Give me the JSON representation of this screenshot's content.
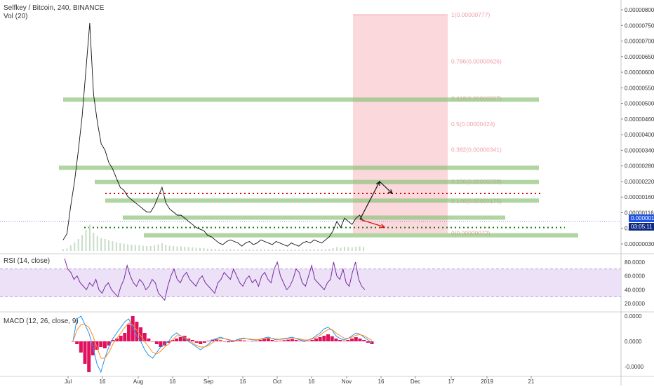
{
  "header": {
    "symbol": "Selfkey / Bitcoin, 240, BINANCE",
    "volume": "Vol (20)",
    "rsi": "RSI (14, close)",
    "macd": "MACD (12, 26, close, 9)"
  },
  "price_badge": "0.00000116",
  "time_badge": "03:05:11",
  "colors": {
    "zone_green": "#8fc27a",
    "fib_red": "#f4a9b0",
    "rsi_line": "#7a2aa0",
    "rsi_band": "#e7d9f5",
    "macd_line": "#2196f3",
    "signal_line": "#ff8c1a",
    "hist_pos": "#e0115f",
    "hist_neg": "#e0115f",
    "price_line": "#111111",
    "dotted_red": "#cc0000",
    "dotted_green": "#1b7a1b",
    "arrow_black": "#111111",
    "arrow_red": "#e01010"
  },
  "chart_data": [
    {
      "type": "line",
      "name": "price",
      "yticks": [
        "0.00000800",
        "0.00000750",
        "0.00000700",
        "0.00000650",
        "0.00000600",
        "0.00000550",
        "0.00000500",
        "0.00000460",
        "0.00000400",
        "0.00000340",
        "0.00000280",
        "0.00000220",
        "0.00000160",
        "0.00000116",
        "0.00000070",
        "0.00000030"
      ],
      "ylim": [
        1e-07,
        8.2e-06
      ],
      "xticks": [
        "Jul",
        "16",
        "Aug",
        "16",
        "Sep",
        "16",
        "Oct",
        "16",
        "Nov",
        "16",
        "Dec",
        "17",
        "2019",
        "21"
      ],
      "price_series": [
        5e-07,
        7e-07,
        1.6e-06,
        2.4e-06,
        3.4e-06,
        4.5e-06,
        6e-06,
        7.5e-06,
        5.2e-06,
        4.3e-06,
        3.6e-06,
        3.4e-06,
        3e-06,
        2.8e-06,
        2.5e-06,
        2.2e-06,
        2.1e-06,
        1.9e-06,
        1.8e-06,
        1.7e-06,
        1.6e-06,
        1.5e-06,
        1.4e-06,
        1.4e-06,
        1.6e-06,
        1.9e-06,
        2.2e-06,
        1.7e-06,
        1.5e-06,
        1.4e-06,
        1.3e-06,
        1.3e-06,
        1.2e-06,
        1.1e-06,
        1e-06,
        9e-07,
        8.5e-07,
        8e-07,
        6.5e-07,
        6e-07,
        5e-07,
        4e-07,
        3.5e-07,
        4.5e-07,
        5e-07,
        4.5e-07,
        4e-07,
        3e-07,
        4e-07,
        4.5e-07,
        3.5e-07,
        4e-07,
        5e-07,
        4.5e-07,
        4e-07,
        3.5e-07,
        4.5e-07,
        4e-07,
        3.5e-07,
        3e-07,
        4e-07,
        3.5e-07,
        3e-07,
        4e-07,
        4.5e-07,
        4e-07,
        5e-07,
        4.5e-07,
        4e-07,
        5e-07,
        6e-07,
        8e-07,
        1.1e-06,
        9e-07,
        1.2e-06,
        1.1e-06,
        1e-06,
        1.2e-06,
        1.3e-06,
        1.1e-06
      ],
      "fib_levels": [
        {
          "label": "1(0.00000777)",
          "value": 7.77e-06
        },
        {
          "label": "0.786(0.00000626)",
          "value": 6.26e-06
        },
        {
          "label": "0.618(0.00000507)",
          "value": 5.07e-06
        },
        {
          "label": "0.5(0.00000424)",
          "value": 4.24e-06
        },
        {
          "label": "0.382(0.00000341)",
          "value": 3.41e-06
        },
        {
          "label": "0.236(0.00000238)",
          "value": 2.38e-06
        },
        {
          "label": "0.146(0.00000175)",
          "value": 1.75e-06
        },
        {
          "label": "0(0.00000072)",
          "value": 7.2e-07
        }
      ],
      "zones": [
        5.03e-06,
        2.83e-06,
        2.37e-06,
        1.77e-06,
        1.22e-06,
        6.5e-07
      ],
      "dotted_red": 2e-06,
      "dotted_green": 9e-07
    },
    {
      "type": "line",
      "name": "RSI (14, close)",
      "yticks": [
        "80.0000",
        "60.0000",
        "40.0000",
        "20.0000"
      ],
      "ylim": [
        10,
        90
      ],
      "band": [
        30,
        70
      ],
      "values": [
        85,
        70,
        65,
        55,
        60,
        50,
        45,
        40,
        50,
        45,
        55,
        40,
        35,
        45,
        50,
        40,
        35,
        30,
        45,
        55,
        75,
        60,
        50,
        45,
        55,
        50,
        40,
        45,
        55,
        50,
        35,
        30,
        25,
        45,
        60,
        70,
        55,
        50,
        60,
        65,
        55,
        50,
        45,
        55,
        60,
        50,
        45,
        40,
        35,
        50,
        55,
        65,
        60,
        55,
        70,
        60,
        50,
        45,
        55,
        60,
        50,
        55,
        45,
        60,
        65,
        55,
        50,
        70,
        80,
        60,
        50,
        40,
        45,
        55,
        70,
        65,
        50,
        45,
        60,
        75,
        55,
        50,
        45,
        40,
        50,
        55,
        80,
        60,
        55,
        70,
        50,
        45,
        65,
        80,
        55,
        45,
        40
      ]
    },
    {
      "type": "bar",
      "name": "MACD (12, 26, close, 9)",
      "yticks": [
        "0.0000",
        "0.0000",
        "-0.0000"
      ],
      "ylim": [
        -1.2,
        1.0
      ],
      "histogram": [
        0,
        -0.1,
        -0.4,
        -0.8,
        -1.1,
        -0.5,
        -0.3,
        -0.2,
        -0.25,
        -0.15,
        0.05,
        0.1,
        0.2,
        0.3,
        0.6,
        0.9,
        0.7,
        0.5,
        0.3,
        0.1,
        0.0,
        -0.1,
        -0.2,
        -0.15,
        -0.05,
        0.05,
        0.1,
        0.15,
        0.2,
        0.1,
        0.05,
        -0.05,
        -0.1,
        -0.05,
        0.02,
        0.06,
        0.08,
        0.04,
        0.0,
        -0.03,
        -0.02,
        0.02,
        0.04,
        0.03,
        0.01,
        -0.01,
        0.02,
        0.05,
        0.08,
        0.1,
        0.05,
        0.0,
        0.02,
        0.04,
        0.06,
        0.08,
        0.05,
        0.02,
        0.0,
        0.02,
        0.05,
        0.1,
        0.15,
        0.2,
        0.25,
        0.18,
        0.1,
        0.05,
        0.02,
        0.05,
        0.1,
        0.15,
        0.1,
        0.05,
        -0.05,
        -0.1
      ],
      "macd": [
        0,
        0.8,
        0.9,
        0.6,
        0.3,
        -0.2,
        -0.8,
        -1.1,
        -0.6,
        -0.2,
        0.1,
        0.3,
        0.5,
        0.7,
        0.8,
        0.5,
        0.2,
        0.0,
        -0.3,
        -0.5,
        -0.6,
        -0.4,
        -0.2,
        -0.1,
        0.0,
        0.2,
        0.3,
        0.2,
        0.1,
        0.0,
        -0.1,
        -0.2,
        -0.3,
        -0.2,
        -0.1,
        0.05,
        0.1,
        0.15,
        0.1,
        0.05,
        0.0,
        0.05,
        0.1,
        0.12,
        0.08,
        0.05,
        0.05,
        0.08,
        0.12,
        0.15,
        0.1,
        0.05,
        0.08,
        0.1,
        0.12,
        0.15,
        0.1,
        0.05,
        0.02,
        0.05,
        0.1,
        0.2,
        0.3,
        0.45,
        0.5,
        0.4,
        0.2,
        0.1,
        0.05,
        0.1,
        0.2,
        0.3,
        0.25,
        0.15,
        0.05,
        -0.05
      ],
      "signal": [
        0,
        0.4,
        0.6,
        0.6,
        0.5,
        0.2,
        -0.2,
        -0.6,
        -0.6,
        -0.4,
        -0.1,
        0.1,
        0.3,
        0.5,
        0.65,
        0.6,
        0.4,
        0.2,
        0.0,
        -0.2,
        -0.4,
        -0.45,
        -0.35,
        -0.2,
        -0.1,
        0.05,
        0.2,
        0.2,
        0.15,
        0.05,
        -0.05,
        -0.15,
        -0.2,
        -0.2,
        -0.15,
        -0.05,
        0.05,
        0.1,
        0.1,
        0.07,
        0.03,
        0.03,
        0.07,
        0.1,
        0.09,
        0.07,
        0.06,
        0.07,
        0.1,
        0.12,
        0.11,
        0.08,
        0.07,
        0.08,
        0.1,
        0.12,
        0.11,
        0.08,
        0.05,
        0.05,
        0.08,
        0.14,
        0.22,
        0.33,
        0.42,
        0.42,
        0.3,
        0.2,
        0.12,
        0.1,
        0.15,
        0.22,
        0.24,
        0.2,
        0.12,
        0.03
      ]
    }
  ]
}
